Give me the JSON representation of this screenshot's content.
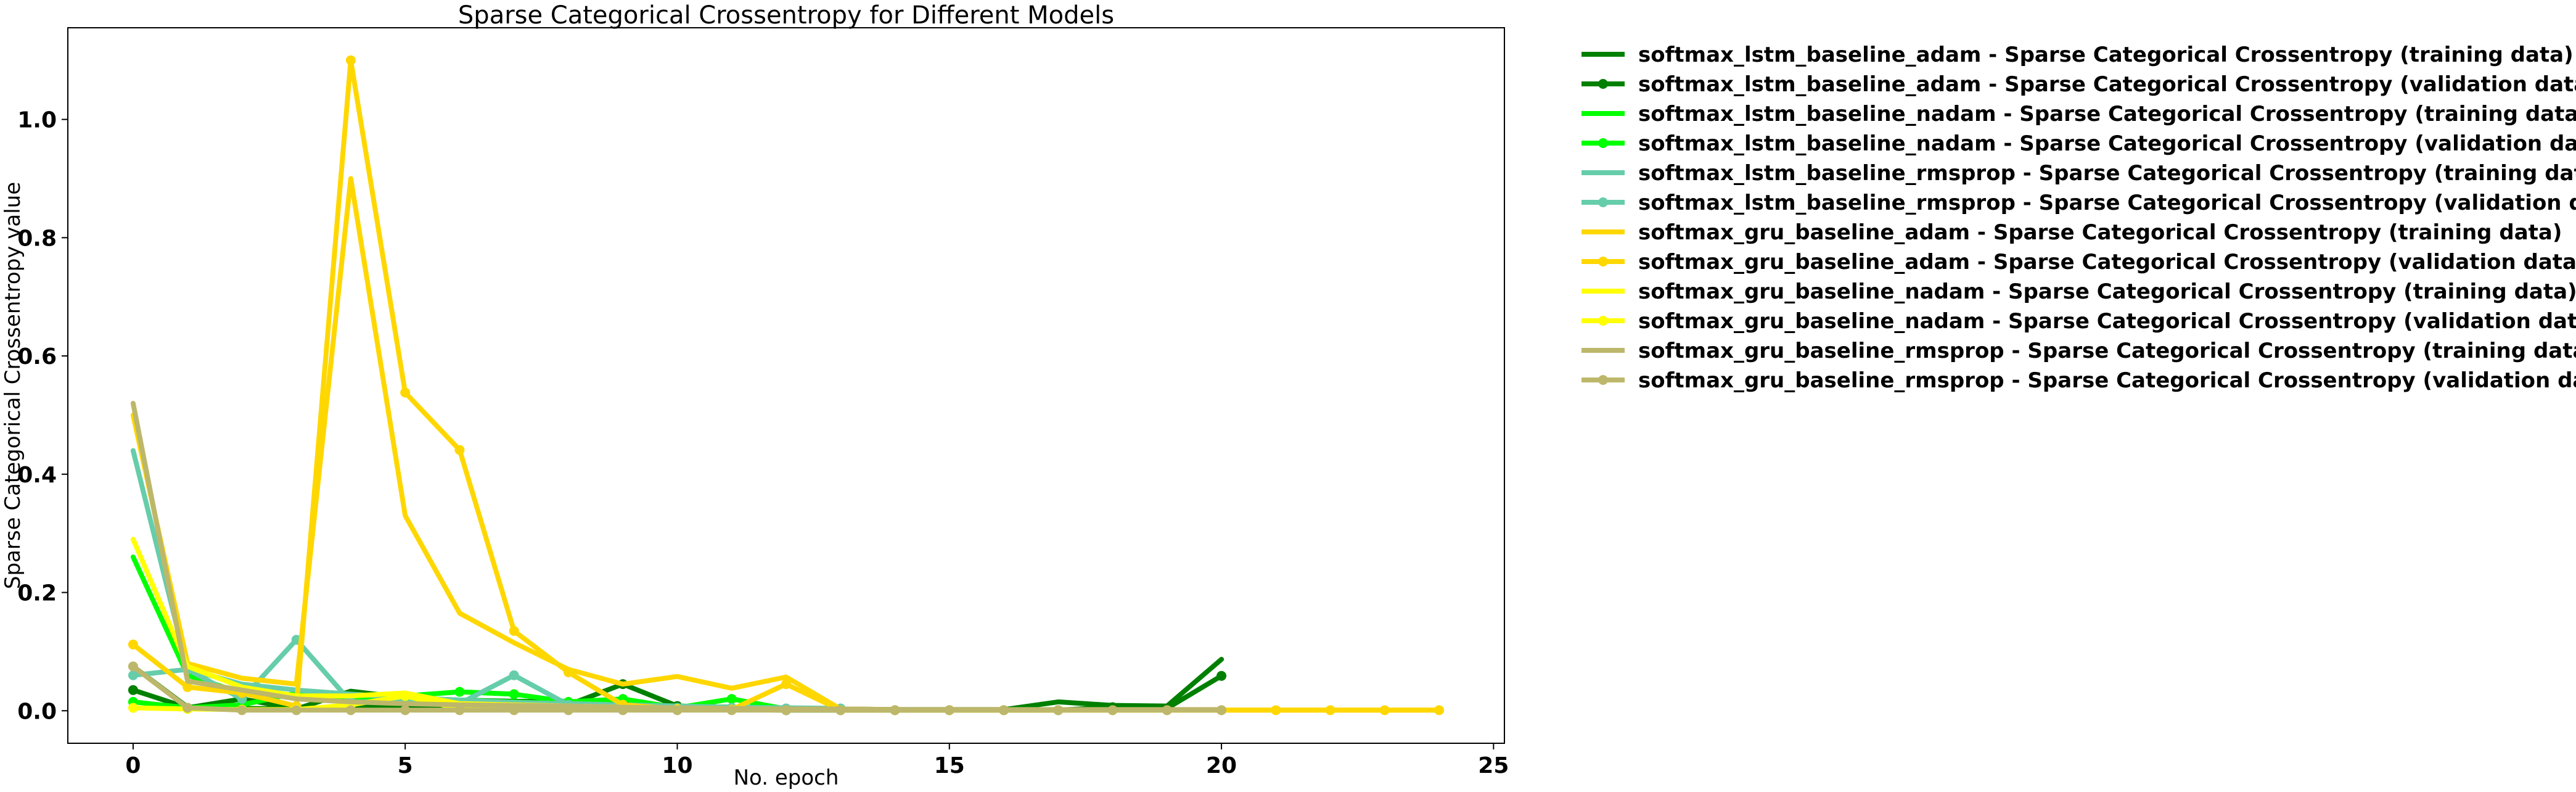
{
  "chart_data": {
    "type": "line",
    "title": "Sparse Categorical Crossentropy for Different Models",
    "xlabel": "No. epoch",
    "ylabel": "Sparse Categorical Crossentropy value",
    "xlim": [
      -1.2,
      25.2
    ],
    "ylim": [
      -0.055,
      1.155
    ],
    "xticks": [
      0,
      5,
      10,
      15,
      20,
      25
    ],
    "yticks": [
      0.0,
      0.2,
      0.4,
      0.6,
      0.8,
      1.0
    ],
    "xtick_labels": [
      "0",
      "5",
      "10",
      "15",
      "20",
      "25"
    ],
    "ytick_labels": [
      "0.0",
      "0.2",
      "0.4",
      "0.6",
      "0.8",
      "1.0"
    ],
    "grid": false,
    "legend_position": "outside-right",
    "series": [
      {
        "name": "softmax_lstm_baseline_adam - Sparse Categorical Crossentropy (training data)",
        "color": "#008000",
        "marker": false,
        "x": [
          0,
          1,
          2,
          3,
          4,
          5,
          6,
          7,
          8,
          9,
          10,
          11,
          12,
          13,
          14,
          15,
          16,
          17,
          18,
          19,
          20
        ],
        "y": [
          0.075,
          0.006,
          0.004,
          0.003,
          0.033,
          0.022,
          0.018,
          0.016,
          0.015,
          0.012,
          0.008,
          0.006,
          0.004,
          0.003,
          0.002,
          0.002,
          0.002,
          0.015,
          0.009,
          0.008,
          0.087
        ]
      },
      {
        "name": "softmax_lstm_baseline_adam - Sparse Categorical Crossentropy (validation data)",
        "color": "#008000",
        "marker": true,
        "x": [
          0,
          1,
          2,
          3,
          4,
          5,
          6,
          7,
          8,
          9,
          10,
          11,
          12,
          13,
          14,
          15,
          16,
          17,
          18,
          19,
          20
        ],
        "y": [
          0.035,
          0.005,
          0.02,
          0.003,
          0.007,
          0.007,
          0.008,
          0.009,
          0.01,
          0.045,
          0.008,
          0.002,
          0.001,
          0.001,
          0.001,
          0.001,
          0.001,
          0.001,
          0.006,
          0.004,
          0.059
        ]
      },
      {
        "name": "softmax_lstm_baseline_nadam - Sparse Categorical Crossentropy (training data)",
        "color": "#00ff00",
        "marker": false,
        "x": [
          0,
          1,
          2,
          3,
          4,
          5,
          6,
          7,
          8,
          9,
          10,
          11,
          12
        ],
        "y": [
          0.26,
          0.06,
          0.03,
          0.025,
          0.023,
          0.02,
          0.018,
          0.015,
          0.012,
          0.01,
          0.008,
          0.006,
          0.004
        ]
      },
      {
        "name": "softmax_lstm_baseline_nadam - Sparse Categorical Crossentropy (validation data)",
        "color": "#00ff00",
        "marker": true,
        "x": [
          0,
          1,
          2,
          3,
          4,
          5,
          6,
          7,
          8,
          9,
          10,
          11,
          12
        ],
        "y": [
          0.015,
          0.005,
          0.01,
          0.03,
          0.02,
          0.025,
          0.032,
          0.028,
          0.015,
          0.02,
          0.005,
          0.02,
          0.003
        ]
      },
      {
        "name": "softmax_lstm_baseline_rmsprop - Sparse Categorical Crossentropy (training data)",
        "color": "#66cdaa",
        "marker": false,
        "x": [
          0,
          1,
          2,
          3,
          4,
          5,
          6,
          7,
          8,
          9,
          10,
          11,
          12,
          13
        ],
        "y": [
          0.44,
          0.07,
          0.045,
          0.035,
          0.028,
          0.022,
          0.018,
          0.014,
          0.012,
          0.01,
          0.008,
          0.006,
          0.005,
          0.004
        ]
      },
      {
        "name": "softmax_lstm_baseline_rmsprop - Sparse Categorical Crossentropy (validation data)",
        "color": "#66cdaa",
        "marker": true,
        "x": [
          0,
          1,
          2,
          3,
          4,
          5,
          6,
          7,
          8,
          9,
          10,
          11,
          12,
          13
        ],
        "y": [
          0.06,
          0.07,
          0.02,
          0.12,
          0.015,
          0.015,
          0.012,
          0.06,
          0.01,
          0.01,
          0.005,
          0.005,
          0.004,
          0.004
        ]
      },
      {
        "name": "softmax_gru_baseline_adam - Sparse Categorical Crossentropy (training data)",
        "color": "#ffd700",
        "marker": false,
        "x": [
          0,
          1,
          2,
          3,
          4,
          5,
          6,
          7,
          8,
          9,
          10,
          11,
          12,
          13,
          14,
          15,
          16,
          17,
          18,
          19,
          20,
          21,
          22,
          23,
          24
        ],
        "y": [
          0.5,
          0.08,
          0.055,
          0.045,
          0.9,
          0.33,
          0.165,
          0.115,
          0.07,
          0.045,
          0.058,
          0.038,
          0.057,
          0.003,
          0.002,
          0.001,
          0.001,
          0.001,
          0.001,
          0.001,
          0.001,
          0.001,
          0.001,
          0.001,
          0.001
        ]
      },
      {
        "name": "softmax_gru_baseline_adam - Sparse Categorical Crossentropy (validation data)",
        "color": "#ffd700",
        "marker": true,
        "x": [
          0,
          1,
          2,
          3,
          4,
          5,
          6,
          7,
          8,
          9,
          10,
          11,
          12,
          13,
          14,
          15,
          16,
          17,
          18,
          19,
          20,
          21,
          22,
          23,
          24
        ],
        "y": [
          0.112,
          0.04,
          0.03,
          0.008,
          1.1,
          0.538,
          0.441,
          0.135,
          0.065,
          0.01,
          0.003,
          0.002,
          0.045,
          0.001,
          0.001,
          0.001,
          0.001,
          0.001,
          0.001,
          0.001,
          0.001,
          0.001,
          0.001,
          0.001,
          0.001
        ]
      },
      {
        "name": "softmax_gru_baseline_nadam - Sparse Categorical Crossentropy (training data)",
        "color": "#ffff00",
        "marker": false,
        "x": [
          0,
          1,
          2,
          3,
          4,
          5,
          6,
          7,
          8,
          9,
          10
        ],
        "y": [
          0.29,
          0.075,
          0.04,
          0.025,
          0.025,
          0.03,
          0.012,
          0.01,
          0.008,
          0.006,
          0.004
        ]
      },
      {
        "name": "softmax_gru_baseline_nadam - Sparse Categorical Crossentropy (validation data)",
        "color": "#ffff00",
        "marker": true,
        "x": [
          0,
          1,
          2,
          3,
          4,
          5,
          6,
          7,
          8,
          9,
          10
        ],
        "y": [
          0.005,
          0.003,
          0.002,
          0.002,
          0.01,
          0.025,
          0.003,
          0.002,
          0.002,
          0.002,
          0.002
        ]
      },
      {
        "name": "softmax_gru_baseline_rmsprop - Sparse Categorical Crossentropy (training data)",
        "color": "#bdb76b",
        "marker": false,
        "x": [
          0,
          1,
          2,
          3,
          4,
          5,
          6,
          7,
          8,
          9,
          10,
          11,
          12,
          13,
          14,
          15,
          16,
          17,
          18,
          19,
          20
        ],
        "y": [
          0.52,
          0.05,
          0.035,
          0.02,
          0.015,
          0.012,
          0.01,
          0.009,
          0.008,
          0.006,
          0.005,
          0.004,
          0.003,
          0.003,
          0.002,
          0.002,
          0.002,
          0.002,
          0.002,
          0.002,
          0.002
        ]
      },
      {
        "name": "softmax_gru_baseline_rmsprop - Sparse Categorical Crossentropy (validation data)",
        "color": "#bdb76b",
        "marker": true,
        "x": [
          0,
          1,
          2,
          3,
          4,
          5,
          6,
          7,
          8,
          9,
          10,
          11,
          12,
          13,
          14,
          15,
          16,
          17,
          18,
          19,
          20
        ],
        "y": [
          0.075,
          0.005,
          0.001,
          0.001,
          0.001,
          0.001,
          0.001,
          0.001,
          0.001,
          0.001,
          0.001,
          0.001,
          0.001,
          0.001,
          0.001,
          0.001,
          0.001,
          0.001,
          0.001,
          0.001,
          0.001
        ]
      }
    ]
  }
}
